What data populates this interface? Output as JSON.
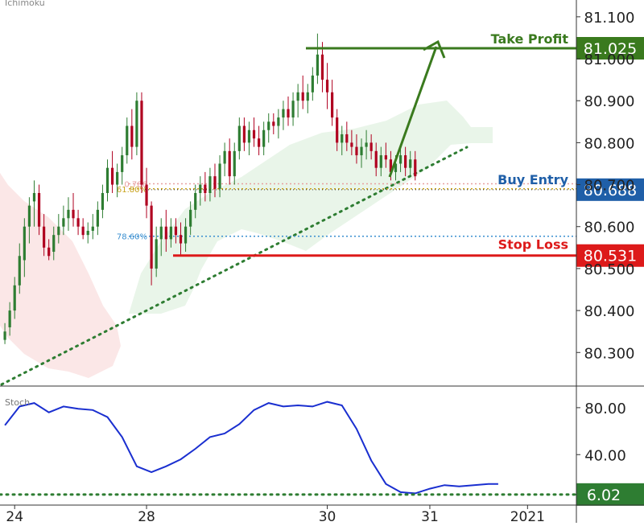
{
  "chart_data": [
    {
      "type": "candlestick",
      "indicator_label": "Ichimoku",
      "y_ticks": [
        "81.100",
        "81.000",
        "80.900",
        "80.800",
        "80.700",
        "80.600",
        "80.500",
        "80.400",
        "80.300"
      ],
      "y_tick_values": [
        81.1,
        81.0,
        80.9,
        80.8,
        80.7,
        80.6,
        80.5,
        80.4,
        80.3
      ],
      "ylim": [
        80.22,
        81.14
      ],
      "x_ticks": [
        "24",
        "28",
        "30",
        "31",
        "2021"
      ],
      "x_tick_index": [
        2,
        29,
        66,
        87,
        107
      ],
      "xlim": [
        -1,
        117
      ],
      "fib_levels": [
        {
          "label": "0.786",
          "value": 80.702,
          "color": "#e8a0a0"
        },
        {
          "label": "61.80%",
          "value": 80.69,
          "color": "#c8a21a"
        },
        {
          "label": "78.60%",
          "value": 80.577,
          "color": "#3a8fd0"
        }
      ],
      "trade_levels": [
        {
          "name": "Take Profit",
          "value_label": "81.025",
          "value": 81.025,
          "color": "#3a7a1e"
        },
        {
          "name": "Buy Entry",
          "value_label": "80.688",
          "value": 80.688,
          "color": "#1f5fa8"
        },
        {
          "name": "Stop Loss",
          "value_label": "80.531",
          "value": 80.531,
          "color": "#dd1a1a"
        }
      ],
      "candles": [
        [
          80.33,
          80.37,
          80.32,
          80.35
        ],
        [
          80.36,
          80.42,
          80.34,
          80.4
        ],
        [
          80.4,
          80.48,
          80.38,
          80.46
        ],
        [
          80.46,
          80.56,
          80.44,
          80.53
        ],
        [
          80.52,
          80.62,
          80.48,
          80.6
        ],
        [
          80.6,
          80.67,
          80.56,
          80.65
        ],
        [
          80.66,
          80.71,
          80.6,
          80.68
        ],
        [
          80.68,
          80.7,
          80.58,
          80.6
        ],
        [
          80.6,
          80.63,
          80.53,
          80.55
        ],
        [
          80.55,
          80.57,
          80.52,
          80.53
        ],
        [
          80.54,
          80.6,
          80.52,
          80.58
        ],
        [
          80.58,
          80.63,
          80.56,
          80.6
        ],
        [
          80.6,
          80.65,
          80.58,
          80.62
        ],
        [
          80.62,
          80.67,
          80.59,
          80.64
        ],
        [
          80.64,
          80.68,
          80.6,
          80.62
        ],
        [
          80.62,
          80.64,
          80.58,
          80.6
        ],
        [
          80.6,
          80.62,
          80.57,
          80.58
        ],
        [
          80.58,
          80.61,
          80.56,
          80.59
        ],
        [
          80.59,
          80.63,
          80.57,
          80.6
        ],
        [
          80.6,
          80.66,
          80.58,
          80.64
        ],
        [
          80.64,
          80.7,
          80.62,
          80.68
        ],
        [
          80.68,
          80.76,
          80.66,
          80.74
        ],
        [
          80.74,
          80.78,
          80.68,
          80.7
        ],
        [
          80.7,
          80.75,
          80.67,
          80.73
        ],
        [
          80.73,
          80.79,
          80.7,
          80.77
        ],
        [
          80.77,
          80.86,
          80.75,
          80.84
        ],
        [
          80.84,
          80.88,
          80.76,
          80.79
        ],
        [
          80.79,
          80.92,
          80.77,
          80.9
        ],
        [
          80.9,
          80.92,
          80.68,
          80.7
        ],
        [
          80.7,
          80.74,
          80.62,
          80.65
        ],
        [
          80.65,
          80.66,
          80.46,
          80.5
        ],
        [
          80.5,
          80.6,
          80.48,
          80.57
        ],
        [
          80.57,
          80.62,
          80.53,
          80.6
        ],
        [
          80.6,
          80.64,
          80.54,
          80.57
        ],
        [
          80.57,
          80.62,
          80.55,
          80.6
        ],
        [
          80.6,
          80.62,
          80.56,
          80.58
        ],
        [
          80.58,
          80.61,
          80.53,
          80.56
        ],
        [
          80.56,
          80.62,
          80.54,
          80.6
        ],
        [
          80.6,
          80.66,
          80.58,
          80.64
        ],
        [
          80.64,
          80.7,
          80.62,
          80.68
        ],
        [
          80.68,
          80.72,
          80.65,
          80.7
        ],
        [
          80.7,
          80.73,
          80.66,
          80.68
        ],
        [
          80.68,
          80.74,
          80.66,
          80.72
        ],
        [
          80.72,
          80.75,
          80.67,
          80.69
        ],
        [
          80.69,
          80.77,
          80.67,
          80.75
        ],
        [
          80.75,
          80.8,
          80.72,
          80.78
        ],
        [
          80.78,
          80.81,
          80.7,
          80.72
        ],
        [
          80.72,
          80.8,
          80.7,
          80.78
        ],
        [
          80.78,
          80.86,
          80.76,
          80.84
        ],
        [
          80.84,
          80.86,
          80.78,
          80.8
        ],
        [
          80.8,
          80.85,
          80.77,
          80.83
        ],
        [
          80.83,
          80.86,
          80.79,
          80.81
        ],
        [
          80.81,
          80.84,
          80.77,
          80.79
        ],
        [
          80.79,
          80.85,
          80.77,
          80.83
        ],
        [
          80.83,
          80.87,
          80.8,
          80.85
        ],
        [
          80.85,
          80.87,
          80.82,
          80.84
        ],
        [
          80.84,
          80.88,
          80.81,
          80.86
        ],
        [
          80.86,
          80.9,
          80.83,
          80.88
        ],
        [
          80.88,
          80.91,
          80.84,
          80.86
        ],
        [
          80.86,
          80.92,
          80.84,
          80.9
        ],
        [
          80.9,
          80.94,
          80.86,
          80.92
        ],
        [
          80.92,
          80.96,
          80.88,
          80.9
        ],
        [
          80.9,
          80.94,
          80.87,
          80.92
        ],
        [
          80.92,
          80.98,
          80.9,
          80.96
        ],
        [
          80.96,
          81.06,
          80.94,
          81.01
        ],
        [
          81.01,
          81.04,
          80.92,
          80.95
        ],
        [
          80.95,
          80.99,
          80.88,
          80.92
        ],
        [
          80.92,
          80.95,
          80.84,
          80.86
        ],
        [
          80.86,
          80.88,
          80.78,
          80.8
        ],
        [
          80.8,
          80.84,
          80.77,
          80.82
        ],
        [
          80.82,
          80.85,
          80.78,
          80.8
        ],
        [
          80.8,
          80.83,
          80.77,
          80.79
        ],
        [
          80.79,
          80.82,
          80.75,
          80.77
        ],
        [
          80.77,
          80.81,
          80.74,
          80.79
        ],
        [
          80.79,
          80.83,
          80.76,
          80.8
        ],
        [
          80.8,
          80.82,
          80.76,
          80.78
        ],
        [
          80.78,
          80.8,
          80.72,
          80.74
        ],
        [
          80.74,
          80.79,
          80.72,
          80.77
        ],
        [
          80.77,
          80.8,
          80.74,
          80.76
        ],
        [
          80.76,
          80.78,
          80.71,
          80.73
        ],
        [
          80.73,
          80.77,
          80.71,
          80.75
        ],
        [
          80.75,
          80.79,
          80.73,
          80.77
        ],
        [
          80.77,
          80.79,
          80.72,
          80.74
        ],
        [
          80.74,
          80.78,
          80.72,
          80.76
        ],
        [
          80.76,
          80.78,
          80.71,
          80.72
        ]
      ]
    },
    {
      "type": "line",
      "indicator_label": "Stoch",
      "y_ticks": [
        "80.00",
        "40.00"
      ],
      "y_tick_values": [
        80,
        40
      ],
      "current_value_label": "6.02",
      "current_value": 6.02,
      "ylim": [
        -3,
        95
      ],
      "x": [
        0,
        3,
        6,
        9,
        12,
        15,
        18,
        21,
        24,
        27,
        30,
        33,
        36,
        39,
        42,
        45,
        48,
        51,
        54,
        57,
        60,
        63,
        66,
        69,
        72,
        75,
        78,
        81,
        84,
        87,
        90,
        93,
        96,
        99,
        101
      ],
      "values": [
        65,
        81,
        84,
        76,
        81,
        79,
        78,
        72,
        55,
        30,
        25,
        30,
        36,
        45,
        55,
        58,
        66,
        78,
        84,
        81,
        82,
        81,
        85,
        82,
        62,
        35,
        15,
        8,
        7,
        11,
        14,
        13,
        14,
        15,
        15
      ]
    }
  ]
}
